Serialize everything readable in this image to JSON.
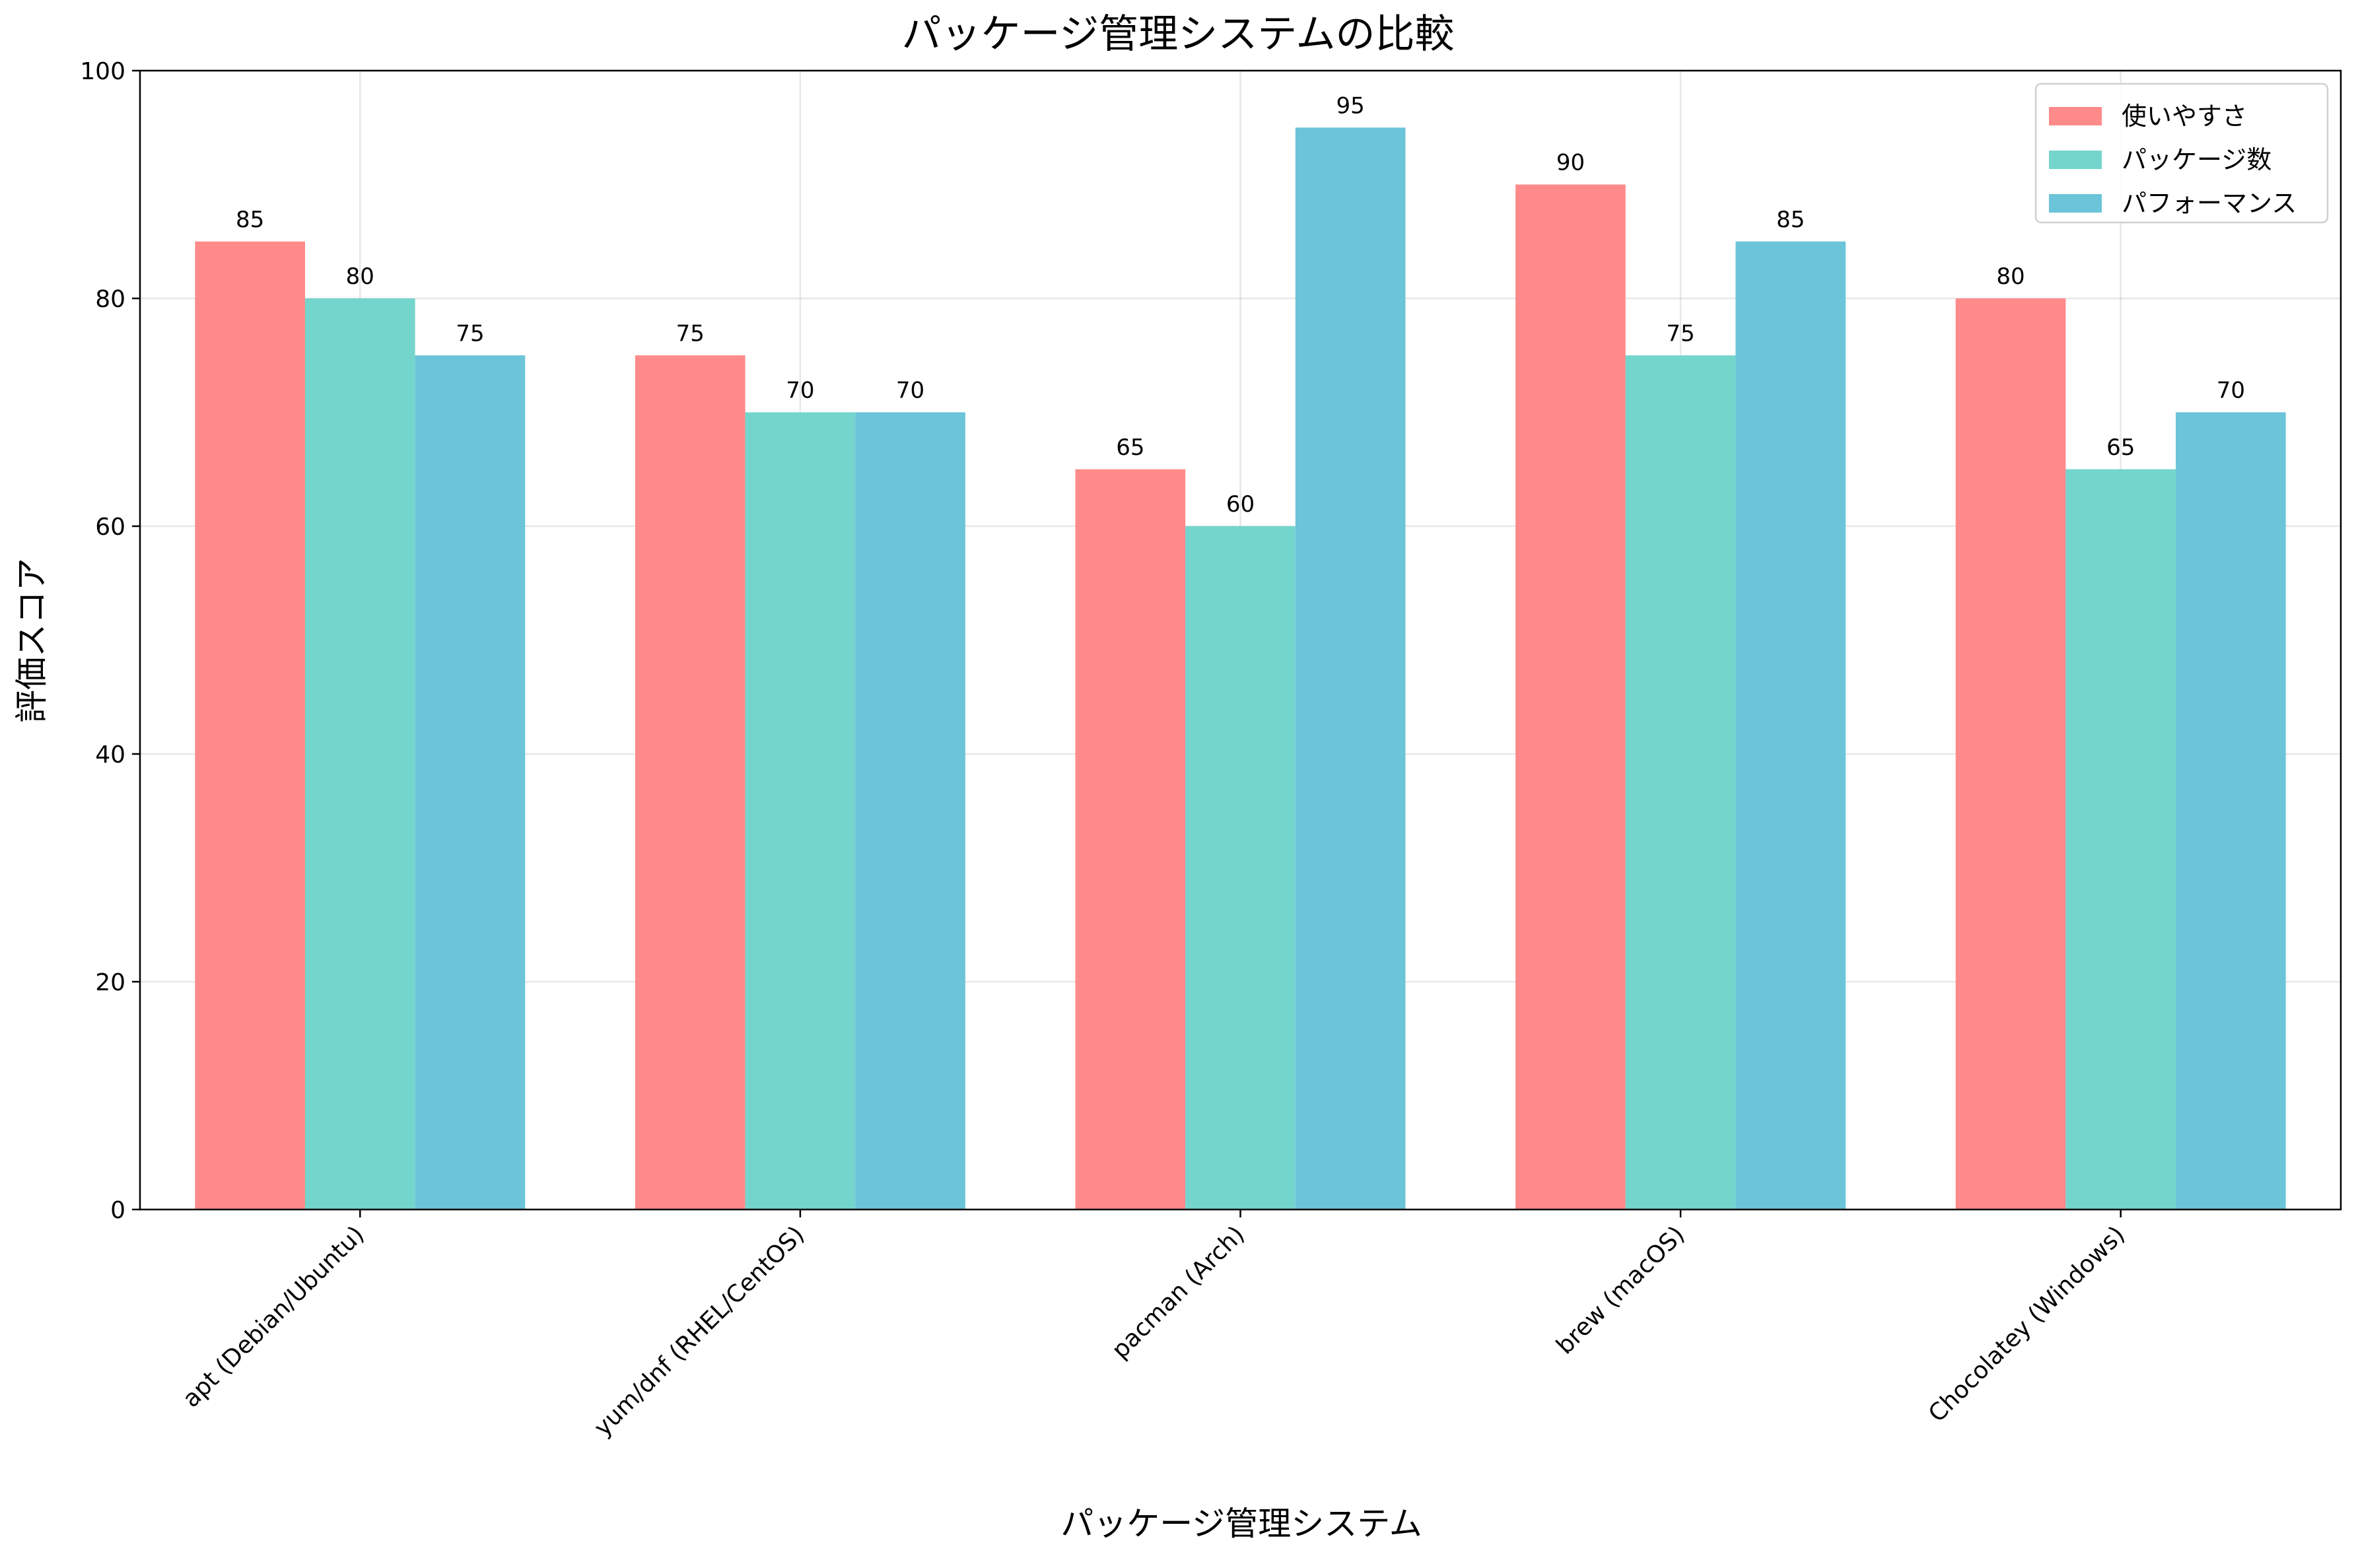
{
  "chart_data": {
    "type": "bar",
    "title": "パッケージ管理システムの比較",
    "xlabel": "パッケージ管理システム",
    "ylabel": "評価スコア",
    "categories": [
      "apt (Debian/Ubuntu)",
      "yum/dnf (RHEL/CentOS)",
      "pacman (Arch)",
      "brew (macOS)",
      "Chocolatey (Windows)"
    ],
    "series": [
      {
        "name": "使いやすさ",
        "values": [
          85,
          75,
          65,
          90,
          80
        ],
        "color": "#FF8A8A"
      },
      {
        "name": "パッケージ数",
        "values": [
          80,
          70,
          60,
          75,
          65
        ],
        "color": "#74D5CD"
      },
      {
        "name": "パフォーマンス",
        "values": [
          75,
          70,
          95,
          85,
          70
        ],
        "color": "#6BC4D8"
      }
    ],
    "ylim": [
      0,
      100
    ],
    "yticks": [
      0,
      20,
      40,
      60,
      80,
      100
    ],
    "grid": true,
    "legend_position": "top-right",
    "data_labels": true
  }
}
